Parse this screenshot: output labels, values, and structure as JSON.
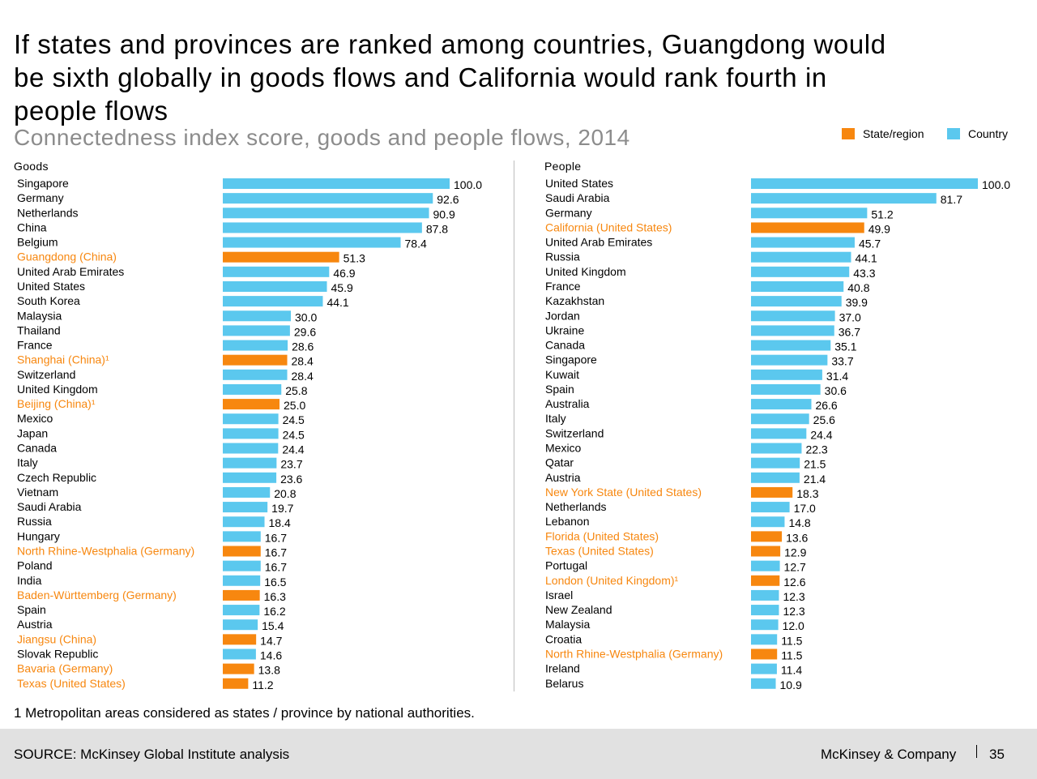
{
  "title": "If states and provinces are ranked among countries, Guangdong would be sixth globally in goods flows and California would rank fourth in people flows",
  "subtitle": "Connectedness index score, goods and people flows, 2014",
  "legend": {
    "state": "State/region",
    "country": "Country"
  },
  "colors": {
    "country": "#5bc8ee",
    "state": "#f7870f",
    "state_text": "#f7870f"
  },
  "chart_data": [
    {
      "type": "bar",
      "orientation": "horizontal",
      "title": "Goods",
      "xlim": [
        0,
        100
      ],
      "rows": [
        {
          "label": "Singapore",
          "value": 100.0,
          "kind": "country"
        },
        {
          "label": "Germany",
          "value": 92.6,
          "kind": "country"
        },
        {
          "label": "Netherlands",
          "value": 90.9,
          "kind": "country"
        },
        {
          "label": "China",
          "value": 87.8,
          "kind": "country"
        },
        {
          "label": "Belgium",
          "value": 78.4,
          "kind": "country"
        },
        {
          "label": "Guangdong (China)",
          "value": 51.3,
          "kind": "state"
        },
        {
          "label": "United Arab Emirates",
          "value": 46.9,
          "kind": "country"
        },
        {
          "label": "United States",
          "value": 45.9,
          "kind": "country"
        },
        {
          "label": "South Korea",
          "value": 44.1,
          "kind": "country"
        },
        {
          "label": "Malaysia",
          "value": 30.0,
          "kind": "country"
        },
        {
          "label": "Thailand",
          "value": 29.6,
          "kind": "country"
        },
        {
          "label": "France",
          "value": 28.6,
          "kind": "country"
        },
        {
          "label": "Shanghai (China)¹",
          "value": 28.4,
          "kind": "state"
        },
        {
          "label": "Switzerland",
          "value": 28.4,
          "kind": "country"
        },
        {
          "label": "United Kingdom",
          "value": 25.8,
          "kind": "country"
        },
        {
          "label": "Beijing (China)¹",
          "value": 25.0,
          "kind": "state"
        },
        {
          "label": "Mexico",
          "value": 24.5,
          "kind": "country"
        },
        {
          "label": "Japan",
          "value": 24.5,
          "kind": "country"
        },
        {
          "label": "Canada",
          "value": 24.4,
          "kind": "country"
        },
        {
          "label": "Italy",
          "value": 23.7,
          "kind": "country"
        },
        {
          "label": "Czech Republic",
          "value": 23.6,
          "kind": "country"
        },
        {
          "label": "Vietnam",
          "value": 20.8,
          "kind": "country"
        },
        {
          "label": "Saudi Arabia",
          "value": 19.7,
          "kind": "country"
        },
        {
          "label": "Russia",
          "value": 18.4,
          "kind": "country"
        },
        {
          "label": "Hungary",
          "value": 16.7,
          "kind": "country"
        },
        {
          "label": "North Rhine-Westphalia (Germany)",
          "value": 16.7,
          "kind": "state"
        },
        {
          "label": "Poland",
          "value": 16.7,
          "kind": "country"
        },
        {
          "label": "India",
          "value": 16.5,
          "kind": "country"
        },
        {
          "label": "Baden-Württemberg (Germany)",
          "value": 16.3,
          "kind": "state"
        },
        {
          "label": "Spain",
          "value": 16.2,
          "kind": "country"
        },
        {
          "label": "Austria",
          "value": 15.4,
          "kind": "country"
        },
        {
          "label": "Jiangsu (China)",
          "value": 14.7,
          "kind": "state"
        },
        {
          "label": "Slovak Republic",
          "value": 14.6,
          "kind": "country"
        },
        {
          "label": "Bavaria (Germany)",
          "value": 13.8,
          "kind": "state"
        },
        {
          "label": "Texas (United States)",
          "value": 11.2,
          "kind": "state"
        }
      ]
    },
    {
      "type": "bar",
      "orientation": "horizontal",
      "title": "People",
      "xlim": [
        0,
        100
      ],
      "rows": [
        {
          "label": "United States",
          "value": 100.0,
          "kind": "country"
        },
        {
          "label": "Saudi Arabia",
          "value": 81.7,
          "kind": "country"
        },
        {
          "label": "Germany",
          "value": 51.2,
          "kind": "country"
        },
        {
          "label": "California (United States)",
          "value": 49.9,
          "kind": "state"
        },
        {
          "label": "United Arab Emirates",
          "value": 45.7,
          "kind": "country"
        },
        {
          "label": "Russia",
          "value": 44.1,
          "kind": "country"
        },
        {
          "label": "United Kingdom",
          "value": 43.3,
          "kind": "country"
        },
        {
          "label": "France",
          "value": 40.8,
          "kind": "country"
        },
        {
          "label": "Kazakhstan",
          "value": 39.9,
          "kind": "country"
        },
        {
          "label": "Jordan",
          "value": 37.0,
          "kind": "country"
        },
        {
          "label": "Ukraine",
          "value": 36.7,
          "kind": "country"
        },
        {
          "label": "Canada",
          "value": 35.1,
          "kind": "country"
        },
        {
          "label": "Singapore",
          "value": 33.7,
          "kind": "country"
        },
        {
          "label": "Kuwait",
          "value": 31.4,
          "kind": "country"
        },
        {
          "label": "Spain",
          "value": 30.6,
          "kind": "country"
        },
        {
          "label": "Australia",
          "value": 26.6,
          "kind": "country"
        },
        {
          "label": "Italy",
          "value": 25.6,
          "kind": "country"
        },
        {
          "label": "Switzerland",
          "value": 24.4,
          "kind": "country"
        },
        {
          "label": "Mexico",
          "value": 22.3,
          "kind": "country"
        },
        {
          "label": "Qatar",
          "value": 21.5,
          "kind": "country"
        },
        {
          "label": "Austria",
          "value": 21.4,
          "kind": "country"
        },
        {
          "label": "New York State (United States)",
          "value": 18.3,
          "kind": "state"
        },
        {
          "label": "Netherlands",
          "value": 17.0,
          "kind": "country"
        },
        {
          "label": "Lebanon",
          "value": 14.8,
          "kind": "country"
        },
        {
          "label": "Florida (United States)",
          "value": 13.6,
          "kind": "state"
        },
        {
          "label": "Texas (United States)",
          "value": 12.9,
          "kind": "state"
        },
        {
          "label": "Portugal",
          "value": 12.7,
          "kind": "country"
        },
        {
          "label": "London (United Kingdom)¹",
          "value": 12.6,
          "kind": "state"
        },
        {
          "label": "Israel",
          "value": 12.3,
          "kind": "country"
        },
        {
          "label": "New Zealand",
          "value": 12.3,
          "kind": "country"
        },
        {
          "label": "Malaysia",
          "value": 12.0,
          "kind": "country"
        },
        {
          "label": "Croatia",
          "value": 11.5,
          "kind": "country"
        },
        {
          "label": "North Rhine-Westphalia (Germany)",
          "value": 11.5,
          "kind": "state"
        },
        {
          "label": "Ireland",
          "value": 11.4,
          "kind": "country"
        },
        {
          "label": "Belarus",
          "value": 10.9,
          "kind": "country"
        }
      ]
    }
  ],
  "footnote": "1 Metropolitan areas considered as states / province by national authorities.",
  "footer": {
    "source": "SOURCE: McKinsey Global Institute analysis",
    "brand": "McKinsey & Company",
    "page": "35"
  }
}
